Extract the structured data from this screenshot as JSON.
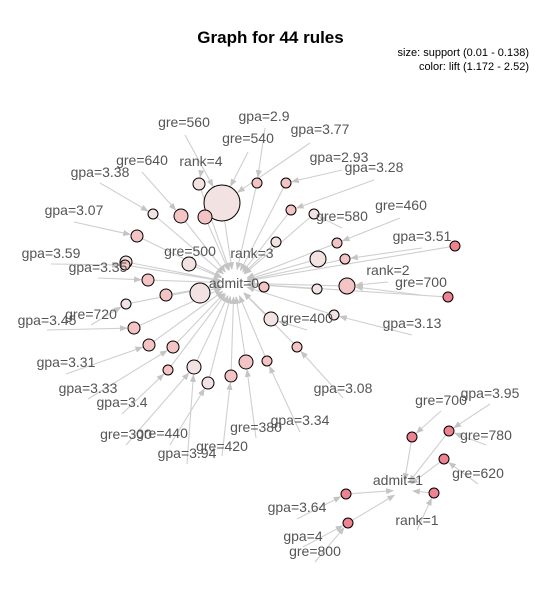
{
  "title": "Graph for 44 rules",
  "legend": {
    "size": "size: support (0.01 - 0.138)",
    "color": "color: lift (1.172 - 2.52)"
  },
  "colors": {
    "edge": "#cfcfcf",
    "arrow": "#c4c4c4",
    "label": "#555555",
    "low_lift": "#f2e2e2",
    "mid_lift": "#f4c4c4",
    "high_lift": "#ee8290",
    "outline": "#000000"
  },
  "labels": {
    "admit_0": "admit=0",
    "admit_1": "admit=1",
    "rank_1": "rank=1",
    "rank_2": "rank=2",
    "rank_3": "rank=3",
    "rank_4": "rank=4",
    "gre_300": "gre=300",
    "gre_380": "gre=380",
    "gre_400": "gre=400",
    "gre_420": "gre=420",
    "gre_440": "gre=440",
    "gre_460": "gre=460",
    "gre_500": "gre=500",
    "gre_540": "gre=540",
    "gre_560": "gre=560",
    "gre_580": "gre=580",
    "gre_620": "gre=620",
    "gre_640": "gre=640",
    "gre_700_a": "gre=700",
    "gre_700_b": "gre=700",
    "gre_720": "gre=720",
    "gre_780": "gre=780",
    "gre_800": "gre=800",
    "gpa_2_9": "gpa=2.9",
    "gpa_2_93": "gpa=2.93",
    "gpa_3_07": "gpa=3.07",
    "gpa_3_08": "gpa=3.08",
    "gpa_3_13": "gpa=3.13",
    "gpa_3_28": "gpa=3.28",
    "gpa_3_31": "gpa=3.31",
    "gpa_3_33": "gpa=3.33",
    "gpa_3_34": "gpa=3.34",
    "gpa_3_35": "gpa=3.35",
    "gpa_3_38": "gpa=3.38",
    "gpa_3_4": "gpa=3.4",
    "gpa_3_45": "gpa=3.45",
    "gpa_3_51": "gpa=3.51",
    "gpa_3_59": "gpa=3.59",
    "gpa_3_64": "gpa=3.64",
    "gpa_3_77": "gpa=3.77",
    "gpa_3_94": "gpa=3.94",
    "gpa_3_95": "gpa=3.95",
    "gpa_4": "gpa=4"
  }
}
